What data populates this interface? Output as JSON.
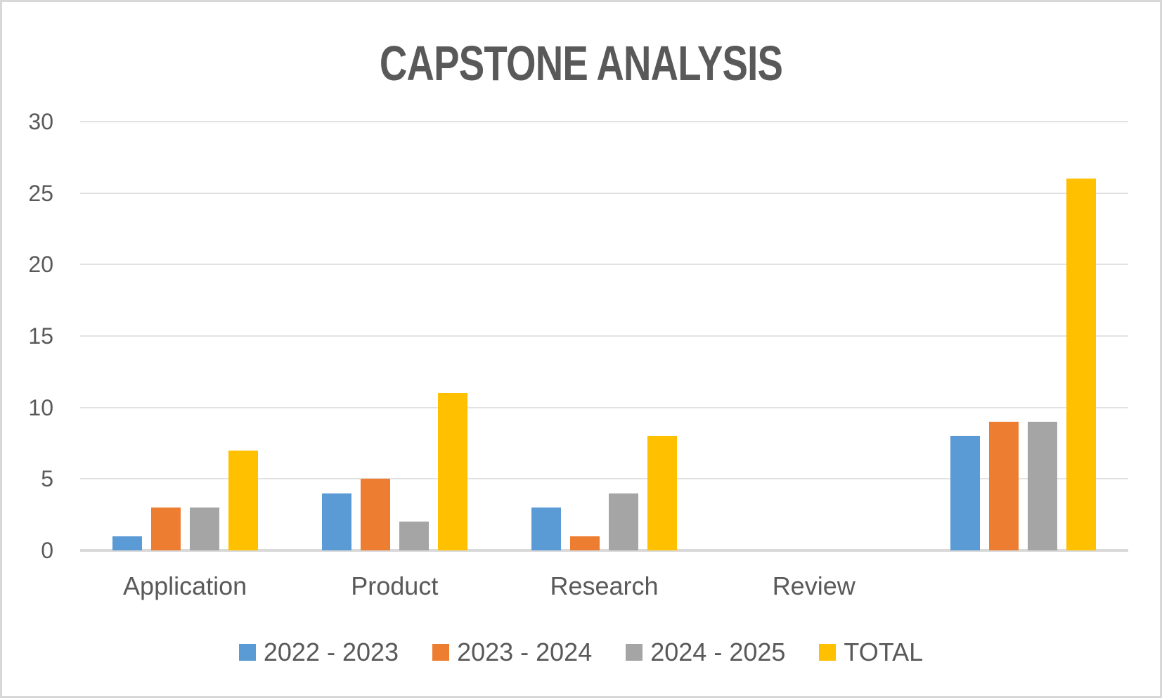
{
  "chart_data": {
    "type": "bar",
    "title": "CAPSTONE ANALYSIS",
    "categories": [
      "Application",
      "Product",
      "Research",
      "Review",
      ""
    ],
    "series": [
      {
        "name": "2022 - 2023",
        "color": "#5B9BD5",
        "values": [
          1,
          4,
          3,
          0,
          8
        ]
      },
      {
        "name": "2023 - 2024",
        "color": "#ED7D31",
        "values": [
          3,
          5,
          1,
          0,
          9
        ]
      },
      {
        "name": "2024 - 2025",
        "color": "#A5A5A5",
        "values": [
          3,
          2,
          4,
          0,
          9
        ]
      },
      {
        "name": "TOTAL",
        "color": "#FFC000",
        "values": [
          7,
          11,
          8,
          0,
          26
        ]
      }
    ],
    "ylabel": "",
    "xlabel": "",
    "ylim": [
      0,
      30
    ],
    "yticks": [
      0,
      5,
      10,
      15,
      20,
      25,
      30
    ],
    "grid": true,
    "legend_position": "bottom",
    "colors": {
      "text": "#595959",
      "gridline": "#E2E2E2",
      "axis_line": "#D9D9D9",
      "background": "#FFFFFF",
      "border": "#D8D8D8"
    }
  }
}
